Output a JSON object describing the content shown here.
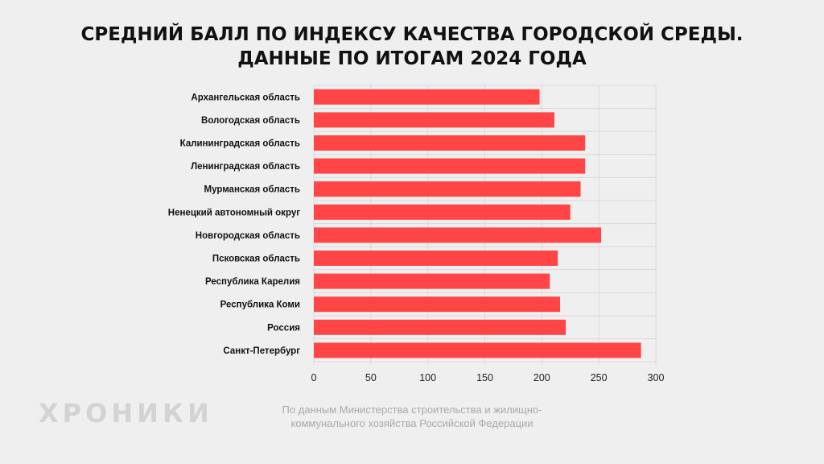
{
  "title": {
    "line1": "СРЕДНИЙ БАЛЛ ПО ИНДЕКСУ КАЧЕСТВА ГОРОДСКОЙ СРЕДЫ.",
    "line2": "ДАННЫЕ ПО ИТОГАМ 2024 ГОДА"
  },
  "brand": "ХРОНИКИ",
  "source": {
    "line1": "По данным Министерства строительства и жилищно-",
    "line2": "коммунального хозяйства Российской Федерации"
  },
  "colors": {
    "bar": "#ff4545",
    "grid": "#d8d8d8",
    "background": "#efefef"
  },
  "chart_data": {
    "type": "bar",
    "orientation": "horizontal",
    "categories": [
      "Архангельская область",
      "Вологодская область",
      "Калининградская область",
      "Ленинградская область",
      "Мурманская область",
      "Ненецкий автономный округ",
      "Новгородская область",
      "Псковская область",
      "Республика Карелия",
      "Республика Коми",
      "Россия",
      "Санкт-Петербург"
    ],
    "values": [
      198,
      211,
      238,
      238,
      234,
      225,
      252,
      214,
      207,
      216,
      221,
      287
    ],
    "xlim": [
      0,
      300
    ],
    "xticks": [
      "0",
      "50",
      "100",
      "150",
      "200",
      "250",
      "300"
    ],
    "grid": true
  }
}
